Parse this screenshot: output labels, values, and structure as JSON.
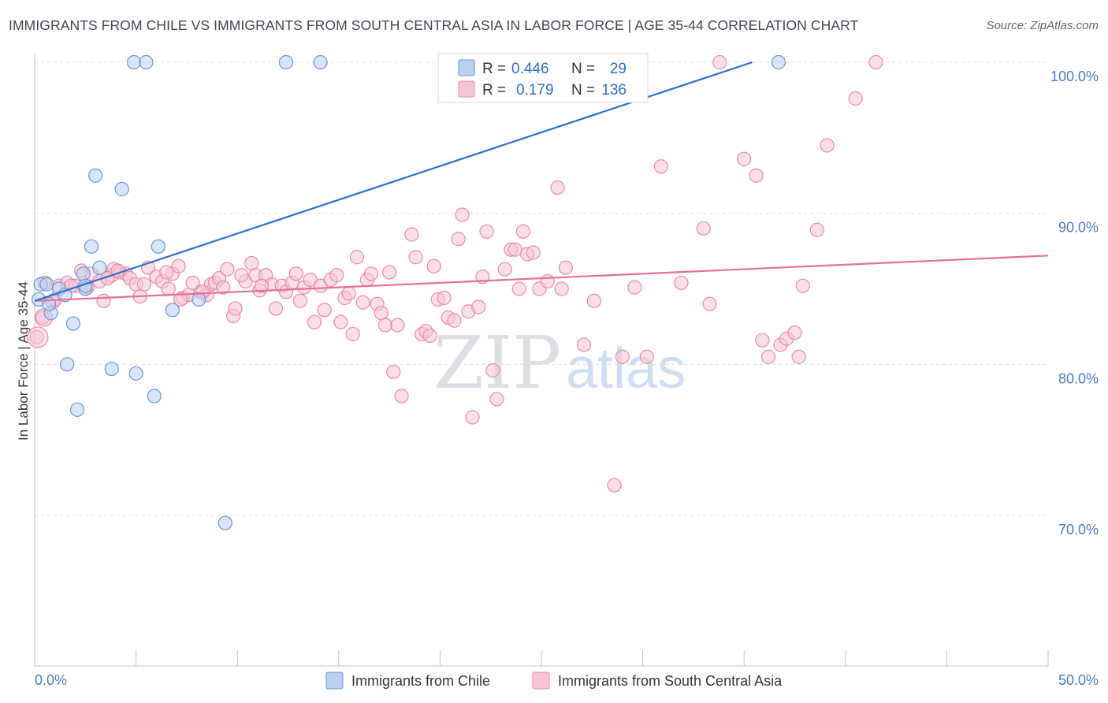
{
  "title": "IMMIGRANTS FROM CHILE VS IMMIGRANTS FROM SOUTH CENTRAL ASIA IN LABOR FORCE | AGE 35-44 CORRELATION CHART",
  "source": "Source: ZipAtlas.com",
  "watermark": {
    "zip": "ZIP",
    "atlas": "atlas"
  },
  "legend": {
    "r_label": "R =",
    "n_label": "N =",
    "series": [
      {
        "name": "Immigrants from Chile",
        "r": "0.446",
        "n": "29"
      },
      {
        "name": "Immigrants from South Central Asia",
        "r": "0.179",
        "n": "136"
      }
    ]
  },
  "colors": {
    "blue_fill": "#b9d0f3",
    "blue_stroke": "#6a96d8",
    "blue_line": "#2f6ed0",
    "pink_fill": "#f8c4d4",
    "pink_stroke": "#e88aa8",
    "pink_line": "#e4709a",
    "grid": "#dde1e6",
    "axis": "#bfc4cc",
    "tick_label": "#4a7ac8"
  },
  "chart_data": {
    "type": "scatter",
    "title": "IMMIGRANTS FROM CHILE VS IMMIGRANTS FROM SOUTH CENTRAL ASIA IN LABOR FORCE | AGE 35-44 CORRELATION CHART",
    "xlabel": "",
    "ylabel": "In Labor Force | Age 35-44",
    "xlim": [
      0,
      50
    ],
    "ylim": [
      60.5,
      101.5
    ],
    "x_tick_labels": [
      "0.0%",
      "50.0%"
    ],
    "y_ticks": [
      70,
      80,
      90,
      100
    ],
    "y_tick_labels": [
      "70.0%",
      "80.0%",
      "90.0%",
      "100.0%"
    ],
    "grid": true,
    "legend_position": "top-center",
    "series": [
      {
        "name": "Immigrants from Chile",
        "color": "#6a96d8",
        "trend": {
          "x": [
            0,
            35.4
          ],
          "y": [
            84.2,
            100.0
          ]
        },
        "points": [
          {
            "x": 0.3,
            "y": 85.3
          },
          {
            "x": 0.6,
            "y": 85.3
          },
          {
            "x": 0.8,
            "y": 83.4
          },
          {
            "x": 1.2,
            "y": 85.0
          },
          {
            "x": 1.5,
            "y": 84.6
          },
          {
            "x": 1.6,
            "y": 80.0
          },
          {
            "x": 1.9,
            "y": 82.7
          },
          {
            "x": 2.1,
            "y": 77.0
          },
          {
            "x": 2.4,
            "y": 86.0
          },
          {
            "x": 2.5,
            "y": 85.0
          },
          {
            "x": 2.8,
            "y": 87.8
          },
          {
            "x": 3.0,
            "y": 92.5
          },
          {
            "x": 3.2,
            "y": 86.4
          },
          {
            "x": 3.8,
            "y": 79.7
          },
          {
            "x": 4.3,
            "y": 91.6
          },
          {
            "x": 4.9,
            "y": 100.0
          },
          {
            "x": 5.0,
            "y": 79.4
          },
          {
            "x": 5.5,
            "y": 100.0
          },
          {
            "x": 5.9,
            "y": 77.9
          },
          {
            "x": 6.1,
            "y": 87.8
          },
          {
            "x": 6.8,
            "y": 83.6
          },
          {
            "x": 8.1,
            "y": 84.3
          },
          {
            "x": 9.4,
            "y": 69.5
          },
          {
            "x": 12.4,
            "y": 100.0
          },
          {
            "x": 14.1,
            "y": 100.0
          },
          {
            "x": 36.7,
            "y": 100.0
          },
          {
            "x": 0.2,
            "y": 84.3
          },
          {
            "x": 0.7,
            "y": 84.0
          },
          {
            "x": 2.5,
            "y": 85.2
          }
        ]
      },
      {
        "name": "Immigrants from South Central Asia",
        "color": "#e88aa8",
        "trend": {
          "x": [
            0,
            50
          ],
          "y": [
            84.2,
            87.2
          ]
        },
        "points": [
          {
            "x": 0.1,
            "y": 81.8
          },
          {
            "x": 0.4,
            "y": 83.1
          },
          {
            "x": 0.9,
            "y": 84.1
          },
          {
            "x": 1.2,
            "y": 85.2
          },
          {
            "x": 1.6,
            "y": 85.4
          },
          {
            "x": 2.0,
            "y": 85.2
          },
          {
            "x": 2.6,
            "y": 85.1
          },
          {
            "x": 2.8,
            "y": 86.0
          },
          {
            "x": 3.2,
            "y": 85.5
          },
          {
            "x": 3.4,
            "y": 84.2
          },
          {
            "x": 3.8,
            "y": 85.9
          },
          {
            "x": 3.9,
            "y": 86.3
          },
          {
            "x": 4.2,
            "y": 86.1
          },
          {
            "x": 4.5,
            "y": 86.0
          },
          {
            "x": 4.7,
            "y": 85.7
          },
          {
            "x": 5.0,
            "y": 85.3
          },
          {
            "x": 5.2,
            "y": 84.5
          },
          {
            "x": 5.6,
            "y": 86.4
          },
          {
            "x": 6.0,
            "y": 85.8
          },
          {
            "x": 6.3,
            "y": 85.5
          },
          {
            "x": 6.6,
            "y": 85.0
          },
          {
            "x": 6.8,
            "y": 86.0
          },
          {
            "x": 7.1,
            "y": 86.5
          },
          {
            "x": 7.3,
            "y": 84.4
          },
          {
            "x": 7.6,
            "y": 84.6
          },
          {
            "x": 7.8,
            "y": 85.4
          },
          {
            "x": 8.2,
            "y": 84.8
          },
          {
            "x": 8.5,
            "y": 84.6
          },
          {
            "x": 8.7,
            "y": 85.3
          },
          {
            "x": 8.9,
            "y": 85.4
          },
          {
            "x": 9.1,
            "y": 85.7
          },
          {
            "x": 9.5,
            "y": 86.3
          },
          {
            "x": 9.8,
            "y": 83.2
          },
          {
            "x": 9.9,
            "y": 83.7
          },
          {
            "x": 10.4,
            "y": 85.5
          },
          {
            "x": 10.7,
            "y": 86.7
          },
          {
            "x": 10.9,
            "y": 85.9
          },
          {
            "x": 11.1,
            "y": 84.9
          },
          {
            "x": 11.4,
            "y": 85.9
          },
          {
            "x": 11.7,
            "y": 85.3
          },
          {
            "x": 11.9,
            "y": 83.7
          },
          {
            "x": 12.2,
            "y": 85.2
          },
          {
            "x": 12.4,
            "y": 84.8
          },
          {
            "x": 12.7,
            "y": 85.4
          },
          {
            "x": 12.9,
            "y": 86.0
          },
          {
            "x": 13.1,
            "y": 84.2
          },
          {
            "x": 13.3,
            "y": 85.1
          },
          {
            "x": 13.6,
            "y": 85.6
          },
          {
            "x": 13.8,
            "y": 82.8
          },
          {
            "x": 14.1,
            "y": 85.2
          },
          {
            "x": 14.3,
            "y": 83.6
          },
          {
            "x": 14.6,
            "y": 85.6
          },
          {
            "x": 14.9,
            "y": 85.9
          },
          {
            "x": 15.1,
            "y": 82.8
          },
          {
            "x": 15.3,
            "y": 84.4
          },
          {
            "x": 15.5,
            "y": 84.7
          },
          {
            "x": 15.7,
            "y": 82.0
          },
          {
            "x": 15.9,
            "y": 87.1
          },
          {
            "x": 16.2,
            "y": 84.1
          },
          {
            "x": 16.4,
            "y": 85.6
          },
          {
            "x": 16.6,
            "y": 86.0
          },
          {
            "x": 16.9,
            "y": 84.0
          },
          {
            "x": 17.1,
            "y": 83.4
          },
          {
            "x": 17.3,
            "y": 82.6
          },
          {
            "x": 17.5,
            "y": 86.1
          },
          {
            "x": 17.7,
            "y": 79.5
          },
          {
            "x": 17.9,
            "y": 82.6
          },
          {
            "x": 18.1,
            "y": 77.9
          },
          {
            "x": 18.6,
            "y": 88.6
          },
          {
            "x": 18.8,
            "y": 87.1
          },
          {
            "x": 19.1,
            "y": 82.0
          },
          {
            "x": 19.3,
            "y": 82.2
          },
          {
            "x": 19.5,
            "y": 81.9
          },
          {
            "x": 19.7,
            "y": 86.5
          },
          {
            "x": 19.9,
            "y": 84.3
          },
          {
            "x": 20.2,
            "y": 84.4
          },
          {
            "x": 20.4,
            "y": 83.1
          },
          {
            "x": 20.7,
            "y": 82.9
          },
          {
            "x": 20.9,
            "y": 88.3
          },
          {
            "x": 21.1,
            "y": 89.9
          },
          {
            "x": 21.4,
            "y": 83.5
          },
          {
            "x": 21.6,
            "y": 76.5
          },
          {
            "x": 21.9,
            "y": 83.8
          },
          {
            "x": 22.1,
            "y": 85.8
          },
          {
            "x": 22.3,
            "y": 88.8
          },
          {
            "x": 22.6,
            "y": 79.6
          },
          {
            "x": 22.8,
            "y": 77.7
          },
          {
            "x": 23.2,
            "y": 86.3
          },
          {
            "x": 23.5,
            "y": 87.6
          },
          {
            "x": 23.7,
            "y": 87.6
          },
          {
            "x": 23.9,
            "y": 85.0
          },
          {
            "x": 24.1,
            "y": 88.8
          },
          {
            "x": 24.3,
            "y": 87.3
          },
          {
            "x": 24.6,
            "y": 87.4
          },
          {
            "x": 24.9,
            "y": 85.0
          },
          {
            "x": 25.3,
            "y": 85.5
          },
          {
            "x": 25.8,
            "y": 91.7
          },
          {
            "x": 26.0,
            "y": 85.0
          },
          {
            "x": 26.2,
            "y": 86.4
          },
          {
            "x": 27.1,
            "y": 81.3
          },
          {
            "x": 27.6,
            "y": 84.2
          },
          {
            "x": 28.6,
            "y": 72.0
          },
          {
            "x": 29.0,
            "y": 80.5
          },
          {
            "x": 29.6,
            "y": 85.1
          },
          {
            "x": 30.2,
            "y": 80.5
          },
          {
            "x": 30.9,
            "y": 93.1
          },
          {
            "x": 31.9,
            "y": 85.4
          },
          {
            "x": 33.0,
            "y": 89.0
          },
          {
            "x": 33.3,
            "y": 84.0
          },
          {
            "x": 33.8,
            "y": 100.0
          },
          {
            "x": 35.0,
            "y": 93.6
          },
          {
            "x": 35.6,
            "y": 92.5
          },
          {
            "x": 35.9,
            "y": 81.6
          },
          {
            "x": 36.2,
            "y": 80.5
          },
          {
            "x": 36.8,
            "y": 81.3
          },
          {
            "x": 37.1,
            "y": 81.7
          },
          {
            "x": 37.5,
            "y": 82.1
          },
          {
            "x": 37.7,
            "y": 80.5
          },
          {
            "x": 37.9,
            "y": 85.2
          },
          {
            "x": 38.6,
            "y": 88.9
          },
          {
            "x": 39.1,
            "y": 94.5
          },
          {
            "x": 40.5,
            "y": 97.6
          },
          {
            "x": 41.5,
            "y": 100.0
          },
          {
            "x": 0.5,
            "y": 85.4
          },
          {
            "x": 1.0,
            "y": 84.3
          },
          {
            "x": 1.8,
            "y": 85.2
          },
          {
            "x": 2.3,
            "y": 86.2
          },
          {
            "x": 3.6,
            "y": 85.7
          },
          {
            "x": 4.1,
            "y": 86.2
          },
          {
            "x": 5.4,
            "y": 85.3
          },
          {
            "x": 6.5,
            "y": 86.1
          },
          {
            "x": 7.2,
            "y": 84.3
          },
          {
            "x": 8.3,
            "y": 84.8
          },
          {
            "x": 9.3,
            "y": 85.1
          },
          {
            "x": 10.2,
            "y": 85.9
          },
          {
            "x": 11.2,
            "y": 85.2
          }
        ]
      }
    ]
  },
  "bottom_legend": [
    "Immigrants from Chile",
    "Immigrants from South Central Asia"
  ]
}
